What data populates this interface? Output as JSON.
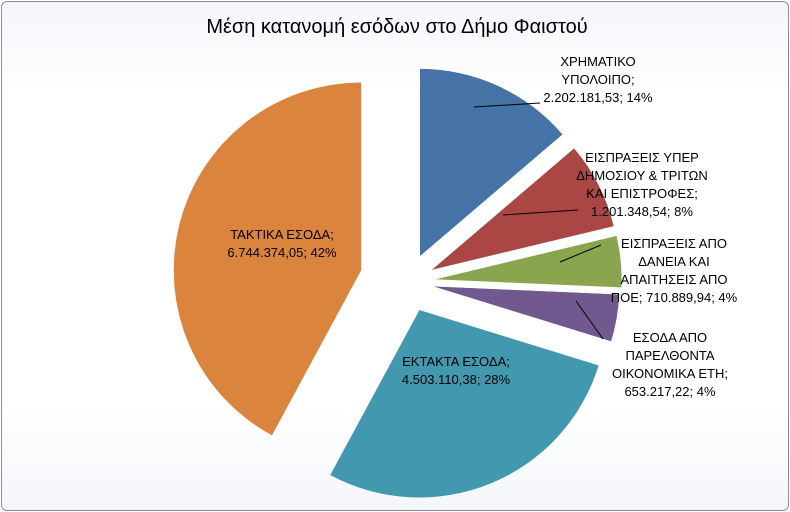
{
  "chart_data": {
    "type": "pie",
    "title": "Μέση κατανομή εσόδων στο Δήμο Φαιστού",
    "slices": [
      {
        "name": "ΧΡΗΜΑΤΙΚΟ ΥΠΟΛΟΙΠΟ",
        "value": 2202181.53,
        "percent": 14,
        "color": "#4572a7",
        "label_lines": [
          "ΧΡΗΜΑΤΙΚΟ",
          "ΥΠΟΛΟΙΠΟ;",
          "2.202.181,53; 14%"
        ]
      },
      {
        "name": "ΕΙΣΠΡΑΞΕΙΣ ΥΠΕΡ ΔΗΜΟΣΙΟΥ & ΤΡΙΤΩΝ ΚΑΙ ΕΠΙΣΤΡΟΦΕΣ",
        "value": 1201348.54,
        "percent": 8,
        "color": "#aa4643",
        "label_lines": [
          "ΕΙΣΠΡΑΞΕΙΣ ΥΠΕΡ",
          "ΔΗΜΟΣΙΟΥ & ΤΡΙΤΩΝ",
          "ΚΑΙ ΕΠΙΣΤΡΟΦΕΣ;",
          "1.201.348,54; 8%"
        ]
      },
      {
        "name": "ΕΙΣΠΡΑΞΕΙΣ ΑΠΟ ΔΑΝΕΙΑ ΚΑΙ ΑΠΑΙΤΗΣΕΙΣ ΑΠΟ ΠΟΕ",
        "value": 710889.94,
        "percent": 4,
        "color": "#89a54e",
        "label_lines": [
          "ΕΙΣΠΡΑΞΕΙΣ ΑΠΟ",
          "ΔΑΝΕΙΑ ΚΑΙ",
          "ΑΠΑΙΤΗΣΕΙΣ ΑΠΟ",
          "ΠΟΕ; 710.889,94; 4%"
        ]
      },
      {
        "name": "ΕΣΟΔΑ ΑΠΟ ΠΑΡΕΛΘΟΝΤΑ ΟΙΚΟΝΟΜΙΚΑ ΕΤΗ",
        "value": 653217.22,
        "percent": 4,
        "color": "#71588f",
        "label_lines": [
          "ΕΣΟΔΑ ΑΠΟ",
          "ΠΑΡΕΛΘΟΝΤΑ",
          "ΟΙΚΟΝΟΜΙΚΑ ΕΤΗ;",
          "653.217,22; 4%"
        ]
      },
      {
        "name": "ΕΚΤΑΚΤΑ ΕΣΟΔΑ",
        "value": 4503110.38,
        "percent": 28,
        "color": "#4198af",
        "label_lines": [
          "ΕΚΤΑΚΤΑ ΕΣΟΔΑ;",
          "4.503.110,38; 28%"
        ]
      },
      {
        "name": "ΤΑΚΤΙΚΑ ΕΣΟΔΑ",
        "value": 6744374.05,
        "percent": 42,
        "color": "#db843d",
        "label_lines": [
          "ΤΑΚΤΙΚΑ ΕΣΟΔΑ;",
          "6.744.374,05; 42%"
        ]
      }
    ]
  }
}
